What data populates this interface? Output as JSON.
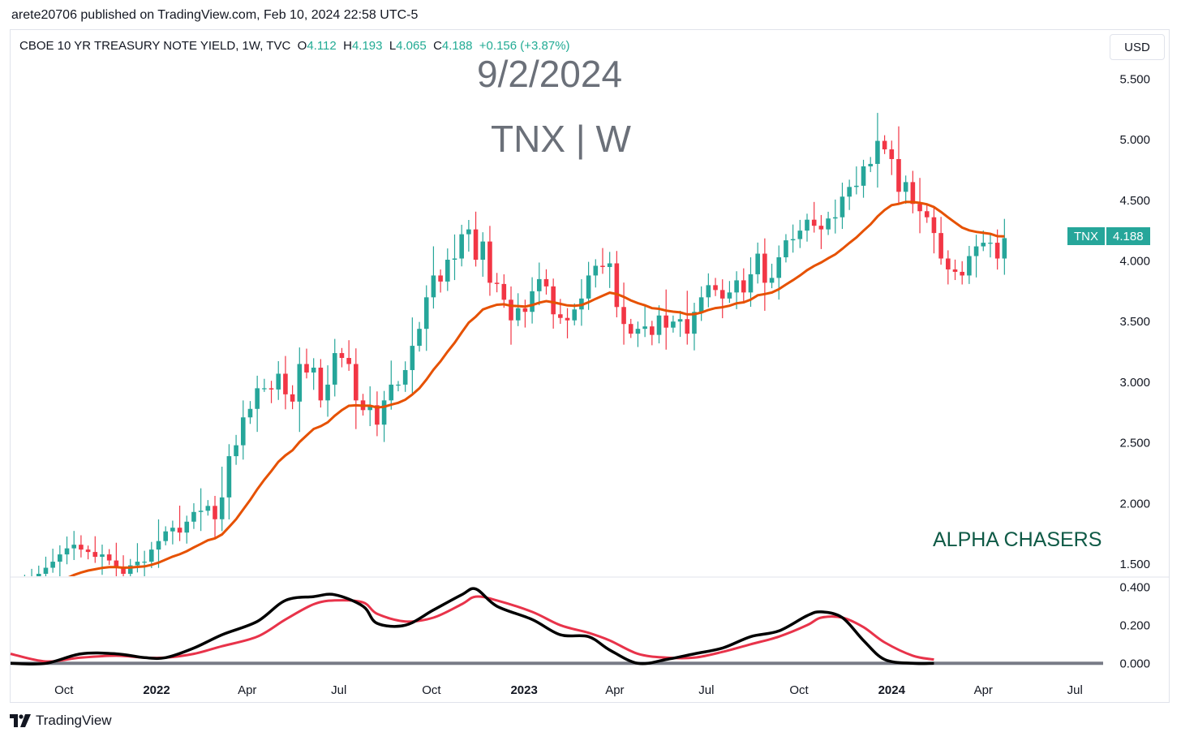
{
  "header": {
    "published": "arete20706 published on TradingView.com, Feb 10, 2024 22:58 UTC-5",
    "symbol_desc": "CBOE 10 YR TREASURY NOTE YIELD, 1W, TVC",
    "o_label": "O",
    "o_value": "4.112",
    "h_label": "H",
    "h_value": "4.193",
    "l_label": "L",
    "l_value": "4.065",
    "c_label": "C",
    "c_value": "4.188",
    "change": "+0.156 (+3.87%)",
    "currency": "USD"
  },
  "annotations": {
    "date": "9/2/2024",
    "symbol": "TNX | W",
    "watermark": "ALPHA CHASERS"
  },
  "price_tag": {
    "symbol": "TNX",
    "value": "4.188"
  },
  "footer": {
    "brand": "TradingView"
  },
  "colors": {
    "up": "#26a69a",
    "down": "#f23645",
    "ma": "#e65100",
    "osc_fast": "#000000",
    "osc_slow": "#e8334a",
    "zero": "#787b86"
  },
  "chart_data": [
    {
      "type": "candlestick",
      "title": "CBOE 10 YR TREASURY NOTE YIELD, 1W, TVC",
      "x_range": [
        "2021-08-09",
        "2024-07-29"
      ],
      "ylim": [
        1.4,
        5.75
      ],
      "yticks": [
        "5.500",
        "5.000",
        "4.500",
        "4.000",
        "3.500",
        "3.000",
        "2.500",
        "2.000",
        "1.500"
      ],
      "xticks": [
        {
          "date": "2021-10-01",
          "label": "Oct",
          "bold": false
        },
        {
          "date": "2022-01-01",
          "label": "2022",
          "bold": true
        },
        {
          "date": "2022-04-01",
          "label": "Apr",
          "bold": false
        },
        {
          "date": "2022-07-01",
          "label": "Jul",
          "bold": false
        },
        {
          "date": "2022-10-01",
          "label": "Oct",
          "bold": false
        },
        {
          "date": "2023-01-01",
          "label": "2023",
          "bold": true
        },
        {
          "date": "2023-04-01",
          "label": "Apr",
          "bold": false
        },
        {
          "date": "2023-07-01",
          "label": "Jul",
          "bold": false
        },
        {
          "date": "2023-10-01",
          "label": "Oct",
          "bold": false
        },
        {
          "date": "2024-01-01",
          "label": "2024",
          "bold": true
        },
        {
          "date": "2024-04-01",
          "label": "Apr",
          "bold": false
        },
        {
          "date": "2024-07-01",
          "label": "Jul",
          "bold": false
        }
      ],
      "weekly_closes": [
        1.28,
        1.3,
        1.33,
        1.37,
        1.42,
        1.47,
        1.52,
        1.58,
        1.63,
        1.66,
        1.62,
        1.6,
        1.56,
        1.58,
        1.53,
        1.48,
        1.42,
        1.49,
        1.52,
        1.52,
        1.62,
        1.69,
        1.77,
        1.8,
        1.76,
        1.85,
        1.93,
        1.94,
        1.98,
        1.87,
        2.05,
        2.39,
        2.48,
        2.71,
        2.78,
        2.95,
        2.95,
        2.94,
        3.07,
        2.9,
        2.84,
        3.15,
        3.08,
        3.12,
        2.85,
        2.98,
        3.24,
        3.2,
        3.15,
        2.85,
        2.77,
        2.81,
        2.65,
        2.85,
        2.98,
        2.98,
        3.1,
        3.3,
        3.44,
        3.7,
        3.88,
        3.83,
        4.01,
        4.02,
        4.22,
        4.26,
        4.01,
        4.16,
        3.82,
        3.81,
        3.68,
        3.51,
        3.61,
        3.58,
        3.75,
        3.85,
        3.79,
        3.56,
        3.53,
        3.51,
        3.6,
        3.69,
        3.88,
        3.96,
        3.95,
        3.98,
        3.62,
        3.48,
        3.4,
        3.44,
        3.46,
        3.39,
        3.55,
        3.45,
        3.5,
        3.52,
        3.4,
        3.58,
        3.7,
        3.8,
        3.76,
        3.69,
        3.74,
        3.84,
        3.74,
        3.89,
        4.06,
        3.82,
        3.86,
        4.03,
        4.17,
        4.18,
        4.25,
        4.34,
        4.29,
        4.26,
        4.35,
        4.36,
        4.53,
        4.61,
        4.62,
        4.78,
        4.8,
        4.99,
        4.92,
        4.84,
        4.57,
        4.65,
        4.47,
        4.41,
        4.36,
        4.23,
        4.02,
        3.93,
        3.91,
        3.88,
        4.04,
        4.12,
        4.15,
        4.15,
        4.02,
        4.188
      ],
      "open_first": 1.26,
      "ma_label": "Moving average",
      "ma_range": [
        1.27,
        4.61
      ]
    },
    {
      "type": "line",
      "title": "Oscillator",
      "ylim": [
        -0.02,
        0.44
      ],
      "yticks": [
        "0.400",
        "0.200",
        "0.000"
      ],
      "zero_line": 0.0,
      "series": [
        {
          "name": "",
          "color": "#000000",
          "points": [
            [
              "2021-08-09",
              0.0
            ],
            [
              "2021-09-13",
              0.0
            ],
            [
              "2021-10-18",
              0.05
            ],
            [
              "2021-11-22",
              0.05
            ],
            [
              "2021-12-20",
              0.03
            ],
            [
              "2022-01-10",
              0.03
            ],
            [
              "2022-02-07",
              0.08
            ],
            [
              "2022-03-07",
              0.15
            ],
            [
              "2022-04-11",
              0.22
            ],
            [
              "2022-05-09",
              0.33
            ],
            [
              "2022-06-06",
              0.35
            ],
            [
              "2022-06-27",
              0.36
            ],
            [
              "2022-07-25",
              0.3
            ],
            [
              "2022-08-08",
              0.21
            ],
            [
              "2022-09-05",
              0.2
            ],
            [
              "2022-10-03",
              0.28
            ],
            [
              "2022-10-31",
              0.36
            ],
            [
              "2022-11-14",
              0.39
            ],
            [
              "2022-12-05",
              0.3
            ],
            [
              "2023-01-09",
              0.23
            ],
            [
              "2023-02-06",
              0.15
            ],
            [
              "2023-03-06",
              0.14
            ],
            [
              "2023-03-27",
              0.07
            ],
            [
              "2023-04-24",
              0.0
            ],
            [
              "2023-05-22",
              0.02
            ],
            [
              "2023-06-19",
              0.05
            ],
            [
              "2023-07-17",
              0.08
            ],
            [
              "2023-08-14",
              0.14
            ],
            [
              "2023-09-11",
              0.17
            ],
            [
              "2023-10-09",
              0.25
            ],
            [
              "2023-10-23",
              0.27
            ],
            [
              "2023-11-13",
              0.24
            ],
            [
              "2023-12-04",
              0.12
            ],
            [
              "2023-12-25",
              0.02
            ],
            [
              "2024-01-22",
              0.0
            ],
            [
              "2024-02-12",
              0.0
            ]
          ]
        },
        {
          "name": "",
          "color": "#e8334a",
          "points": [
            [
              "2021-08-09",
              0.05
            ],
            [
              "2021-09-13",
              0.01
            ],
            [
              "2021-10-18",
              0.03
            ],
            [
              "2021-11-22",
              0.04
            ],
            [
              "2021-12-20",
              0.03
            ],
            [
              "2022-01-10",
              0.03
            ],
            [
              "2022-02-07",
              0.05
            ],
            [
              "2022-03-07",
              0.09
            ],
            [
              "2022-04-11",
              0.14
            ],
            [
              "2022-05-09",
              0.23
            ],
            [
              "2022-06-06",
              0.31
            ],
            [
              "2022-06-27",
              0.33
            ],
            [
              "2022-07-25",
              0.32
            ],
            [
              "2022-08-08",
              0.26
            ],
            [
              "2022-09-05",
              0.22
            ],
            [
              "2022-10-03",
              0.24
            ],
            [
              "2022-10-31",
              0.31
            ],
            [
              "2022-11-14",
              0.35
            ],
            [
              "2022-12-05",
              0.33
            ],
            [
              "2023-01-09",
              0.27
            ],
            [
              "2023-02-06",
              0.2
            ],
            [
              "2023-03-06",
              0.16
            ],
            [
              "2023-03-27",
              0.12
            ],
            [
              "2023-04-24",
              0.05
            ],
            [
              "2023-05-22",
              0.03
            ],
            [
              "2023-06-19",
              0.03
            ],
            [
              "2023-07-17",
              0.06
            ],
            [
              "2023-08-14",
              0.1
            ],
            [
              "2023-09-11",
              0.14
            ],
            [
              "2023-10-09",
              0.2
            ],
            [
              "2023-10-23",
              0.24
            ],
            [
              "2023-11-13",
              0.24
            ],
            [
              "2023-12-04",
              0.19
            ],
            [
              "2023-12-25",
              0.11
            ],
            [
              "2024-01-22",
              0.04
            ],
            [
              "2024-02-12",
              0.02
            ]
          ]
        }
      ]
    }
  ]
}
